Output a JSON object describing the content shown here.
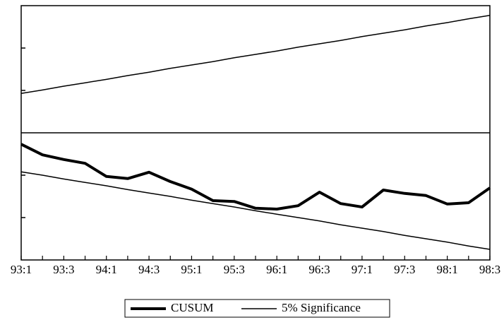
{
  "chart_data": {
    "type": "line",
    "categories": [
      "93:1",
      null,
      "93:3",
      null,
      "94:1",
      null,
      "94:3",
      null,
      "95:1",
      null,
      "95:3",
      null,
      "96:1",
      null,
      "96:3",
      null,
      "97:1",
      null,
      "97:3",
      null,
      "98:1",
      null,
      "98:3"
    ],
    "series": [
      {
        "name": "CUSUM",
        "color": "#000000",
        "width": 4,
        "values": [
          -2.7,
          -5.2,
          -6.3,
          -7.2,
          -10.3,
          -10.8,
          -9.3,
          -11.5,
          -13.3,
          -16,
          -16.2,
          -17.8,
          -18,
          -17.2,
          -14,
          -16.7,
          -17.5,
          -13.5,
          -14.3,
          -14.8,
          -16.8,
          -16.5,
          -13
        ]
      },
      {
        "name": "5% Significance",
        "color": "#000000",
        "width": 1.5,
        "values": [
          9.3,
          10.1,
          11.0,
          11.8,
          12.6,
          13.5,
          14.3,
          15.2,
          16.0,
          16.8,
          17.7,
          18.5,
          19.3,
          20.2,
          21.0,
          21.8,
          22.7,
          23.5,
          24.3,
          25.2,
          26.0,
          26.9,
          27.7
        ],
        "lower_values": [
          -9.2,
          -10.0,
          -10.9,
          -11.7,
          -12.5,
          -13.4,
          -14.2,
          -15.0,
          -15.9,
          -16.7,
          -17.5,
          -18.4,
          -19.2,
          -20.0,
          -20.8,
          -21.7,
          -22.5,
          -23.3,
          -24.2,
          -25.0,
          -25.8,
          -26.7,
          -27.5
        ]
      }
    ],
    "ylim": [
      -30,
      30
    ],
    "yticks": [
      -20,
      -10,
      0,
      10,
      20
    ],
    "zero_line": true
  }
}
